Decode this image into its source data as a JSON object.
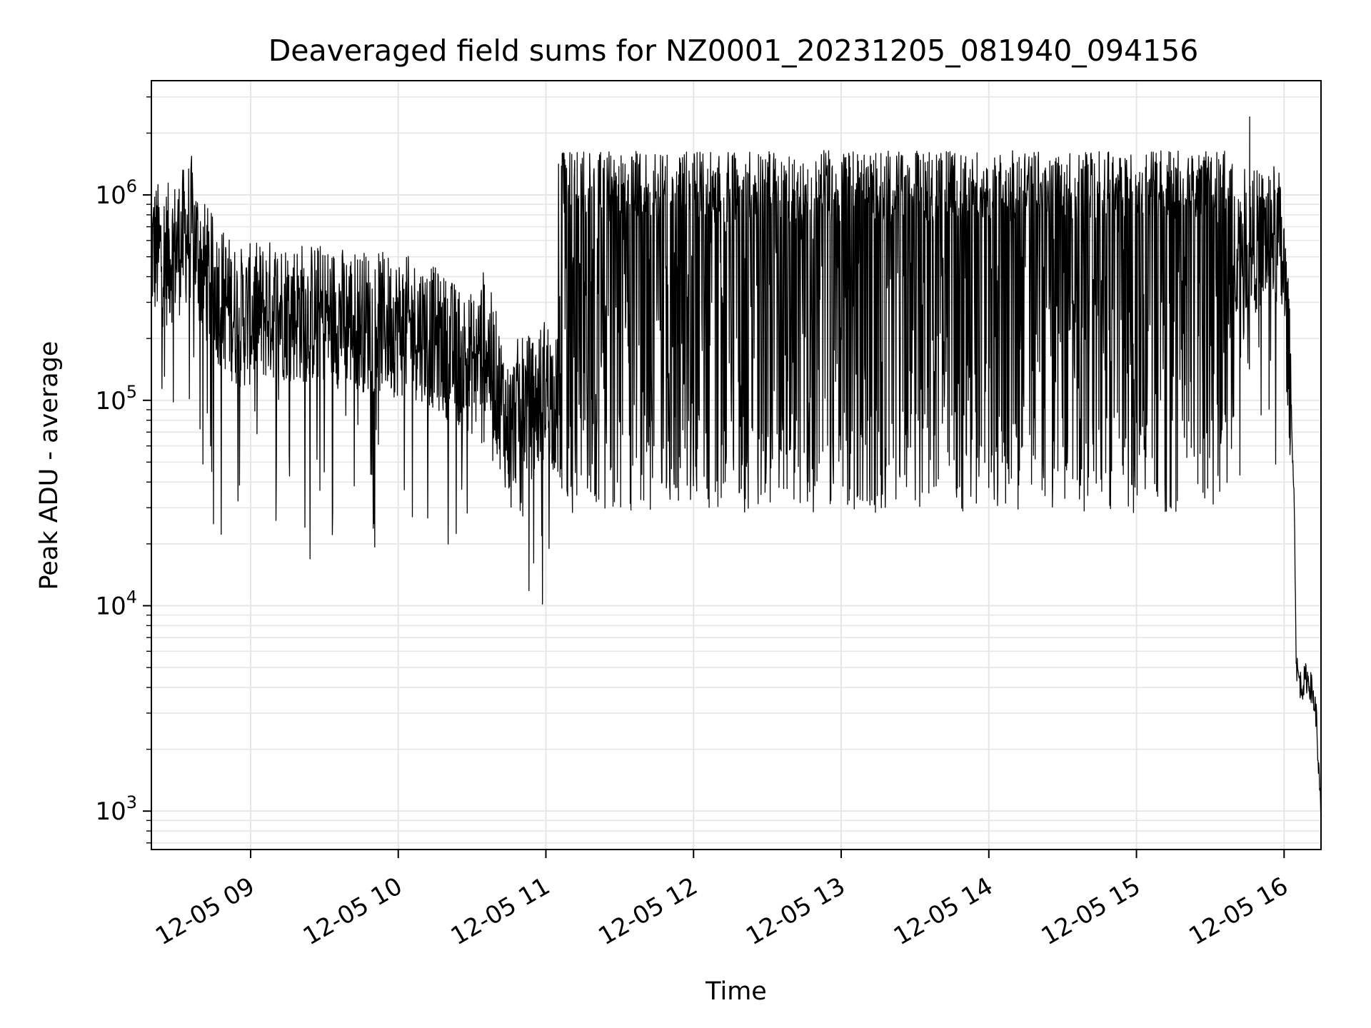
{
  "chart_data": {
    "type": "line",
    "title": "Deaveraged field sums for NZ0001_20231205_081940_094156",
    "xlabel": "Time",
    "ylabel": "Peak ADU - average",
    "yscale": "log",
    "ylim": [
      650,
      3600000
    ],
    "xlim": [
      "2023-12-05T08:19:40",
      "2023-12-05T16:15:00"
    ],
    "x_ticks": [
      {
        "t": "2023-12-05T09:00",
        "label": "12-05 09"
      },
      {
        "t": "2023-12-05T10:00",
        "label": "12-05 10"
      },
      {
        "t": "2023-12-05T11:00",
        "label": "12-05 11"
      },
      {
        "t": "2023-12-05T12:00",
        "label": "12-05 12"
      },
      {
        "t": "2023-12-05T13:00",
        "label": "12-05 13"
      },
      {
        "t": "2023-12-05T14:00",
        "label": "12-05 14"
      },
      {
        "t": "2023-12-05T15:00",
        "label": "12-05 15"
      },
      {
        "t": "2023-12-05T16:00",
        "label": "12-05 16"
      }
    ],
    "y_ticks": [
      {
        "value": 1000,
        "base": "10",
        "exp": "3"
      },
      {
        "value": 10000,
        "base": "10",
        "exp": "4"
      },
      {
        "value": 100000,
        "base": "10",
        "exp": "5"
      },
      {
        "value": 1000000,
        "base": "10",
        "exp": "6"
      }
    ],
    "grid": true,
    "series_color": "#000000",
    "grid_color": "#e6e6e6",
    "series": [
      {
        "x": [
          "2023-12-05T08:19:40",
          "2023-12-05T08:25",
          "2023-12-05T08:30",
          "2023-12-05T08:36",
          "2023-12-05T08:40",
          "2023-12-05T08:45",
          "2023-12-05T08:50",
          "2023-12-05T08:55",
          "2023-12-05T09:00",
          "2023-12-05T09:10",
          "2023-12-05T09:20",
          "2023-12-05T09:30",
          "2023-12-05T09:40",
          "2023-12-05T09:50",
          "2023-12-05T10:00",
          "2023-12-05T10:10",
          "2023-12-05T10:20",
          "2023-12-05T10:30",
          "2023-12-05T10:35",
          "2023-12-05T10:40",
          "2023-12-05T10:45",
          "2023-12-05T10:50",
          "2023-12-05T10:55",
          "2023-12-05T11:00",
          "2023-12-05T11:05",
          "2023-12-05T11:10",
          "2023-12-05T11:20",
          "2023-12-05T11:40",
          "2023-12-05T12:00",
          "2023-12-05T12:30",
          "2023-12-05T13:00",
          "2023-12-05T13:30",
          "2023-12-05T14:00",
          "2023-12-05T14:30",
          "2023-12-05T15:00",
          "2023-12-05T15:30",
          "2023-12-05T15:40",
          "2023-12-05T15:50",
          "2023-12-05T15:55",
          "2023-12-05T15:58",
          "2023-12-05T16:00",
          "2023-12-05T16:02",
          "2023-12-05T16:04",
          "2023-12-05T16:05",
          "2023-12-05T16:07",
          "2023-12-05T16:09",
          "2023-12-05T16:11",
          "2023-12-05T16:13",
          "2023-12-05T16:15"
        ],
        "values": [
          550000,
          500000,
          550000,
          700000,
          450000,
          350000,
          300000,
          250000,
          260000,
          280000,
          270000,
          260000,
          250000,
          240000,
          230000,
          220000,
          180000,
          150000,
          200000,
          120000,
          70000,
          100000,
          90000,
          120000,
          90000,
          60000,
          90000,
          350000,
          500000,
          450000,
          500000,
          600000,
          650000,
          600000,
          550000,
          550000,
          600000,
          600000,
          650000,
          600000,
          400000,
          150000,
          40000,
          5000,
          4000,
          4500,
          4000,
          3000,
          900
        ],
        "spikes_high": [
          1400000,
          1700000,
          1600000,
          1500000,
          1500000,
          1600000,
          1500000,
          1700000,
          1600000,
          1400000
        ],
        "spikes_low": [
          30000,
          35000,
          30000,
          25000,
          35000,
          40000,
          50000,
          45000,
          50000,
          60000
        ]
      }
    ]
  }
}
